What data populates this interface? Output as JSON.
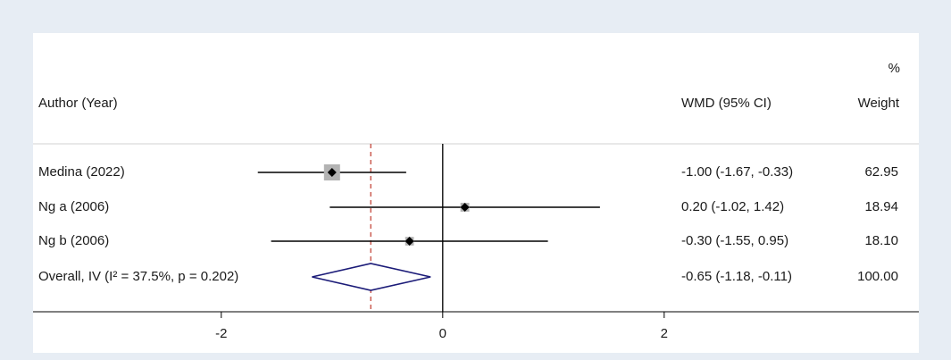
{
  "chart_data": {
    "type": "forest",
    "headers": {
      "author": "Author (Year)",
      "estimate": "WMD (95% CI)",
      "weight_unit": "%",
      "weight": "Weight"
    },
    "studies": [
      {
        "label": "Medina (2022)",
        "effect": -1.0,
        "lower": -1.67,
        "upper": -0.33,
        "ci_label": "-1.00 (-1.67, -0.33)",
        "weight": 62.95,
        "weight_label": "62.95"
      },
      {
        "label": "Ng a (2006)",
        "effect": 0.2,
        "lower": -1.02,
        "upper": 1.42,
        "ci_label": "0.20 (-1.02, 1.42)",
        "weight": 18.94,
        "weight_label": "18.94"
      },
      {
        "label": "Ng b (2006)",
        "effect": -0.3,
        "lower": -1.55,
        "upper": 0.95,
        "ci_label": "-0.30 (-1.55, 0.95)",
        "weight": 18.1,
        "weight_label": "18.10"
      }
    ],
    "overall": {
      "label": "Overall, IV (I² = 37.5%, p = 0.202)",
      "effect": -0.65,
      "lower": -1.18,
      "upper": -0.11,
      "ci_label": "-0.65 (-1.18, -0.11)",
      "weight": 100.0,
      "weight_label": "100.00"
    },
    "null_line": 0,
    "xlim": [
      -3.7,
      4.3
    ],
    "xticks": [
      -2,
      0,
      2
    ],
    "colors": {
      "box": "#b3b3b3",
      "point": "#000000",
      "ci": "#000000",
      "diamond": "#1b1b78",
      "overall_line": "#c0392b"
    }
  }
}
